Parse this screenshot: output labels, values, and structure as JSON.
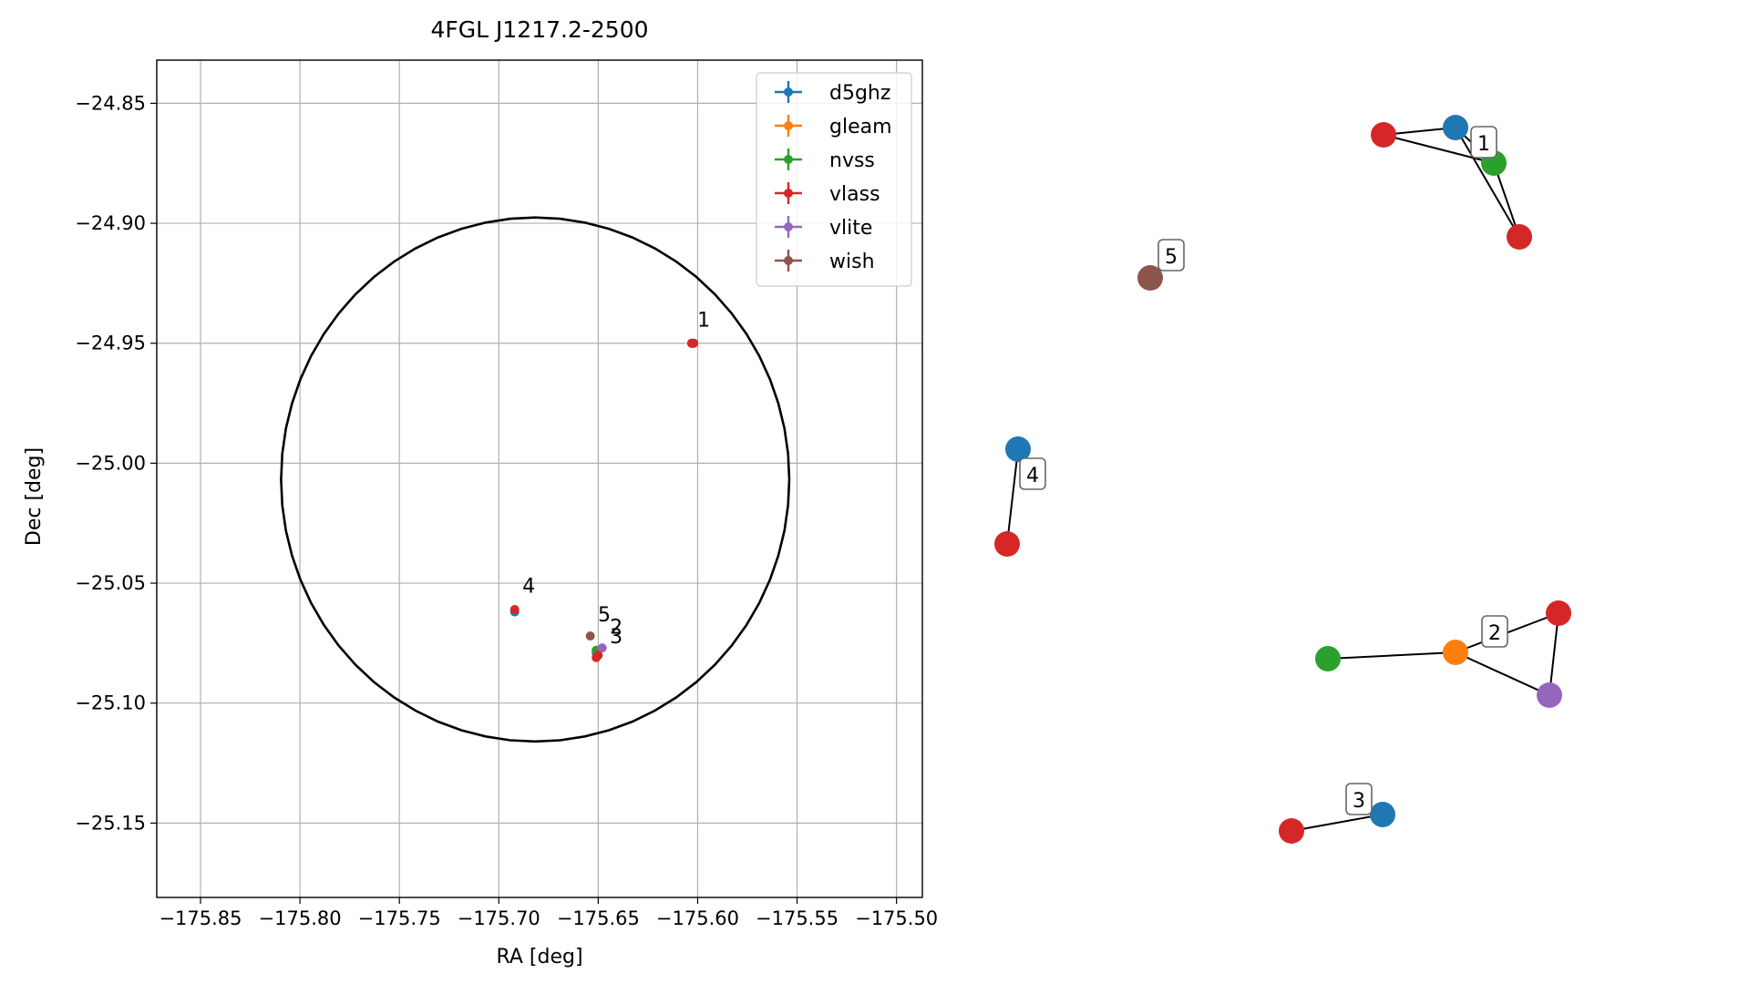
{
  "chart_data": [
    {
      "type": "scatter",
      "title": "4FGL J1217.2-2500",
      "xlabel": "RA [deg]",
      "ylabel": "Dec [deg]",
      "xlim": [
        -175.872,
        -175.487
      ],
      "ylim": [
        -25.181,
        -24.832
      ],
      "xticks": [
        -175.85,
        -175.8,
        -175.75,
        -175.7,
        -175.65,
        -175.6,
        -175.55,
        -175.5
      ],
      "xtick_labels": [
        "−175.85",
        "−175.80",
        "−175.75",
        "−175.70",
        "−175.65",
        "−175.60",
        "−175.55",
        "−175.50"
      ],
      "yticks": [
        -24.85,
        -24.9,
        -24.95,
        -25.0,
        -25.05,
        -25.1,
        -25.15
      ],
      "ytick_labels": [
        "−24.85",
        "−24.90",
        "−24.95",
        "−25.00",
        "−25.05",
        "−25.10",
        "−25.15"
      ],
      "grid": true,
      "legend_position": "top-right",
      "circle": {
        "center": [
          -175.6817,
          -25.0068
        ],
        "radius_x": 0.1278,
        "radius_y": 0.1092
      },
      "series": [
        {
          "name": "d5ghz",
          "color": "#1f77b4",
          "points": [
            [
              -175.651,
              -25.079
            ],
            [
              -175.692,
              -25.062
            ],
            [
              -175.603,
              -24.95
            ]
          ]
        },
        {
          "name": "gleam",
          "color": "#ff7f0e",
          "points": [
            [
              -175.651,
              -25.078
            ]
          ]
        },
        {
          "name": "nvss",
          "color": "#2ca02c",
          "points": [
            [
              -175.651,
              -25.078
            ],
            [
              -175.602,
              -24.95
            ]
          ]
        },
        {
          "name": "vlass",
          "color": "#d62728",
          "points": [
            [
              -175.651,
              -25.081
            ],
            [
              -175.65,
              -25.08
            ],
            [
              -175.692,
              -25.061
            ],
            [
              -175.603,
              -24.95
            ],
            [
              -175.602,
              -24.95
            ]
          ]
        },
        {
          "name": "vlite",
          "color": "#9467bd",
          "points": [
            [
              -175.648,
              -25.077
            ]
          ]
        },
        {
          "name": "wish",
          "color": "#8c564b",
          "points": [
            [
              -175.654,
              -25.072
            ]
          ]
        }
      ],
      "annotations": [
        {
          "text": "1",
          "x": -175.602,
          "y": -24.943
        },
        {
          "text": "2",
          "x": -175.646,
          "y": -25.071
        },
        {
          "text": "3",
          "x": -175.646,
          "y": -25.075
        },
        {
          "text": "4",
          "x": -175.69,
          "y": -25.054
        },
        {
          "text": "5",
          "x": -175.652,
          "y": -25.066
        }
      ]
    },
    {
      "type": "network",
      "groups": [
        {
          "label": "1",
          "nodes": [
            {
              "id": "n1a",
              "series": "vlass",
              "color": "#d62728"
            },
            {
              "id": "n1b",
              "series": "d5ghz",
              "color": "#1f77b4"
            },
            {
              "id": "n1c",
              "series": "nvss",
              "color": "#2ca02c"
            },
            {
              "id": "n1d",
              "series": "vlass",
              "color": "#d62728"
            }
          ],
          "edges": [
            [
              "n1a",
              "n1b"
            ],
            [
              "n1a",
              "n1c"
            ],
            [
              "n1b",
              "n1c"
            ],
            [
              "n1b",
              "n1d"
            ],
            [
              "n1c",
              "n1d"
            ]
          ]
        },
        {
          "label": "2",
          "nodes": [
            {
              "id": "n2a",
              "series": "nvss",
              "color": "#2ca02c"
            },
            {
              "id": "n2b",
              "series": "gleam",
              "color": "#ff7f0e"
            },
            {
              "id": "n2c",
              "series": "vlass",
              "color": "#d62728"
            },
            {
              "id": "n2d",
              "series": "vlite",
              "color": "#9467bd"
            }
          ],
          "edges": [
            [
              "n2a",
              "n2b"
            ],
            [
              "n2b",
              "n2c"
            ],
            [
              "n2b",
              "n2d"
            ],
            [
              "n2c",
              "n2d"
            ]
          ]
        },
        {
          "label": "3",
          "nodes": [
            {
              "id": "n3a",
              "series": "vlass",
              "color": "#d62728"
            },
            {
              "id": "n3b",
              "series": "d5ghz",
              "color": "#1f77b4"
            }
          ],
          "edges": [
            [
              "n3a",
              "n3b"
            ]
          ]
        },
        {
          "label": "4",
          "nodes": [
            {
              "id": "n4a",
              "series": "d5ghz",
              "color": "#1f77b4"
            },
            {
              "id": "n4b",
              "series": "vlass",
              "color": "#d62728"
            }
          ],
          "edges": [
            [
              "n4a",
              "n4b"
            ]
          ]
        },
        {
          "label": "5",
          "nodes": [
            {
              "id": "n5a",
              "series": "wish",
              "color": "#8c564b"
            }
          ],
          "edges": []
        }
      ]
    }
  ]
}
